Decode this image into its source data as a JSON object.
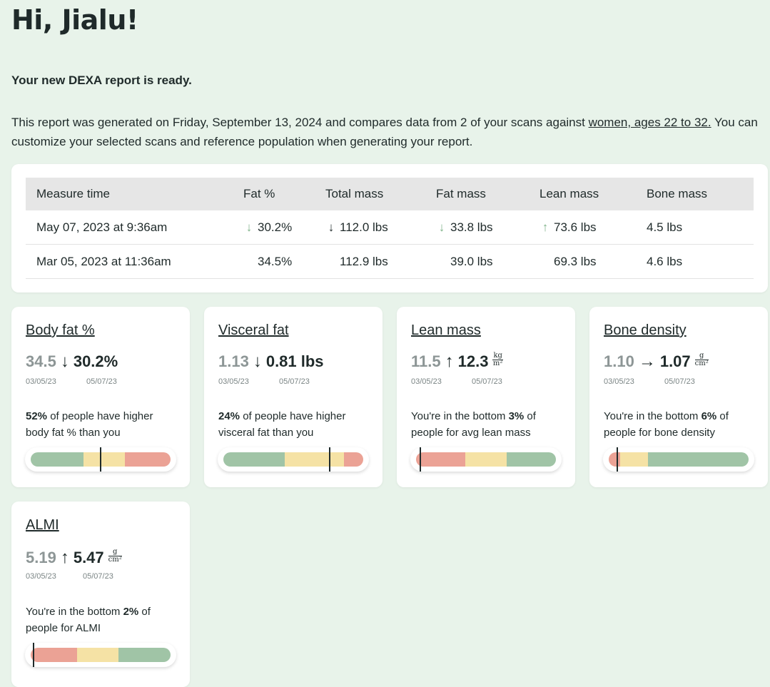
{
  "greeting": "Hi, Jialu!",
  "ready": "Your new DEXA report is ready.",
  "intro": {
    "before": "This report was generated on Friday, September 13, 2024 and compares data from 2 of your scans against ",
    "link": "women, ages 22 to 32.",
    "after": " You can customize your selected scans and reference population when generating your report."
  },
  "table": {
    "headers": [
      "Measure time",
      "Fat %",
      "Total mass",
      "Fat mass",
      "Lean mass",
      "Bone mass"
    ],
    "rows": [
      {
        "time": "May 07, 2023 at 9:36am",
        "fat_pct": {
          "arrow": "↓",
          "color": "#7fb38a",
          "value": "30.2%"
        },
        "total": {
          "arrow": "↓",
          "color": "#1f2a2a",
          "value": "112.0 lbs"
        },
        "fat_mass": {
          "arrow": "↓",
          "color": "#7fb38a",
          "value": "33.8 lbs"
        },
        "lean": {
          "arrow": "↑",
          "color": "#7fb38a",
          "value": "73.6 lbs"
        },
        "bone": "4.5 lbs"
      },
      {
        "time": "Mar 05, 2023 at 11:36am",
        "fat_pct": {
          "value": "34.5%"
        },
        "total": {
          "value": "112.9 lbs"
        },
        "fat_mass": {
          "value": "39.0 lbs"
        },
        "lean": {
          "value": "69.3 lbs"
        },
        "bone": "4.6 lbs"
      }
    ]
  },
  "cards": [
    {
      "title": "Body fat %",
      "old": "34.5",
      "arrow": "↓",
      "new": "30.2%",
      "unit_top": "",
      "unit_bottom": "",
      "date_old": "03/05/23",
      "date_new": "05/07/23",
      "desc_pre": "",
      "desc_bold": "52%",
      "desc_post": " of people have higher body fat % than you",
      "marker_pct": 0.5
    },
    {
      "title": "Visceral fat",
      "old": "1.13",
      "arrow": "↓",
      "new": "0.81 lbs",
      "unit_top": "",
      "unit_bottom": "",
      "date_old": "03/05/23",
      "date_new": "05/07/23",
      "desc_pre": "",
      "desc_bold": "24%",
      "desc_post": " of people have higher visceral fat than you",
      "marker_pct": 0.76
    },
    {
      "title": "Lean mass",
      "old": "11.5",
      "arrow": "↑",
      "new": "12.3",
      "unit_top": "kg",
      "unit_bottom": "m²",
      "date_old": "03/05/23",
      "date_new": "05/07/23",
      "desc_pre": "You're in the bottom ",
      "desc_bold": "3%",
      "desc_post": " of people for avg lean mass",
      "marker_pct": 0.03
    },
    {
      "title": "Bone density",
      "old": "1.10",
      "arrow": "→",
      "new": "1.07",
      "unit_top": "g",
      "unit_bottom": "cm²",
      "date_old": "03/05/23",
      "date_new": "05/07/23",
      "desc_pre": "You're in the bottom ",
      "desc_bold": "6%",
      "desc_post": " of people for bone density",
      "marker_pct": 0.06
    },
    {
      "title": "ALMI",
      "old": "5.19",
      "arrow": "↑",
      "new": "5.47",
      "unit_top": "g",
      "unit_bottom": "cm²",
      "date_old": "03/05/23",
      "date_new": "05/07/23",
      "desc_pre": "You're in the bottom ",
      "desc_bold": "2%",
      "desc_post": " of people for ALMI",
      "marker_pct": 0.02
    }
  ],
  "colors": {
    "green": "#a0c4a6",
    "yellow": "#f5e2a5",
    "red": "#eba295",
    "background": "#e8f3ea"
  }
}
